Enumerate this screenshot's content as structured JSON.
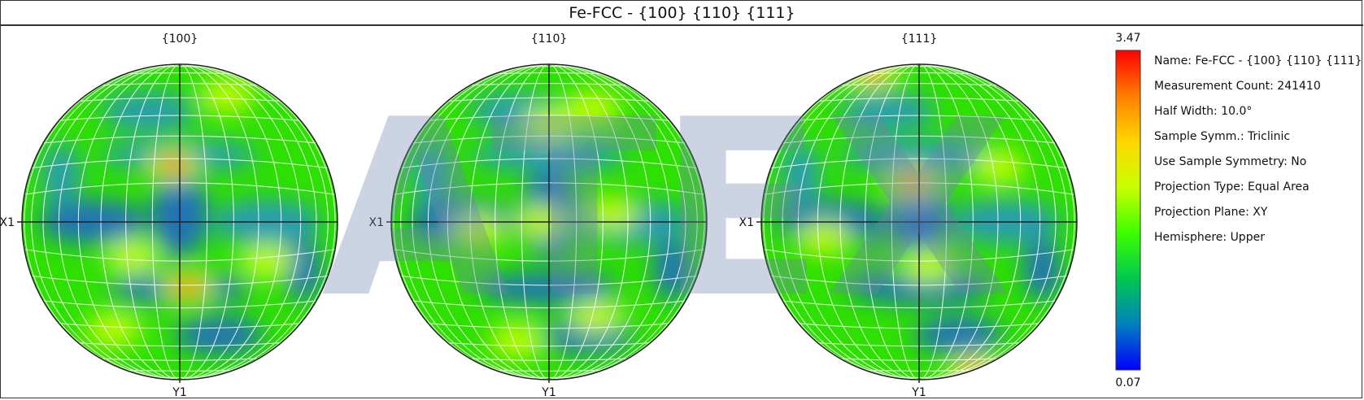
{
  "title": "Fe-FCC - {100} {110} {111}",
  "chart_data": {
    "type": "heatmap",
    "subtype": "pole-figure",
    "pole_figures": [
      {
        "label": "{100}",
        "x_axis_label": "X1",
        "y_axis_label": "Y1",
        "hotspots": [
          {
            "x": -0.04,
            "y": -0.36,
            "strength": 1.0
          },
          {
            "x": 0.05,
            "y": 0.41,
            "strength": 1.0
          },
          {
            "x": -0.42,
            "y": 0.68,
            "strength": 0.5
          },
          {
            "x": 0.3,
            "y": -0.8,
            "strength": 0.45
          },
          {
            "x": -0.3,
            "y": 0.22,
            "strength": 0.35
          },
          {
            "x": 0.55,
            "y": 0.25,
            "strength": 0.35
          }
        ]
      },
      {
        "label": "{110}",
        "x_axis_label": "X1",
        "y_axis_label": "Y1",
        "hotspots": [
          {
            "x": 0.28,
            "y": -0.72,
            "strength": 0.6
          },
          {
            "x": 0.0,
            "y": -0.62,
            "strength": 0.5
          },
          {
            "x": -0.45,
            "y": 0.05,
            "strength": 0.55
          },
          {
            "x": 0.4,
            "y": -0.05,
            "strength": 0.55
          },
          {
            "x": -0.05,
            "y": 0.0,
            "strength": 0.45
          },
          {
            "x": -0.2,
            "y": 0.75,
            "strength": 0.5
          },
          {
            "x": 0.3,
            "y": 0.6,
            "strength": 0.45
          }
        ]
      },
      {
        "label": "{111}",
        "x_axis_label": "X1",
        "y_axis_label": "Y1",
        "hotspots": [
          {
            "x": -0.3,
            "y": -0.95,
            "strength": 1.0
          },
          {
            "x": 0.35,
            "y": 0.95,
            "strength": 1.0
          },
          {
            "x": -0.04,
            "y": -0.25,
            "strength": 0.9
          },
          {
            "x": 0.05,
            "y": 0.28,
            "strength": 0.55
          },
          {
            "x": -0.6,
            "y": 0.1,
            "strength": 0.35
          },
          {
            "x": 0.5,
            "y": -0.35,
            "strength": 0.35
          }
        ]
      }
    ],
    "colorbar": {
      "max_label": "3.47",
      "min_label": "0.07",
      "colors": [
        "#ff0000",
        "#ff7f00",
        "#ffd700",
        "#c8ff00",
        "#3dff00",
        "#00c850",
        "#0080c0",
        "#0000ff"
      ]
    },
    "info": [
      "Name: Fe-FCC - {100} {110} {111}",
      "Measurement Count: 241410",
      "Half Width: 10.0°",
      "Sample Symm.: Triclinic",
      "Use Sample Symmetry: No",
      "Projection Type: Equal Area",
      "Projection Plane: XY",
      "Hemisphere: Upper"
    ],
    "watermark": "ATEX"
  }
}
